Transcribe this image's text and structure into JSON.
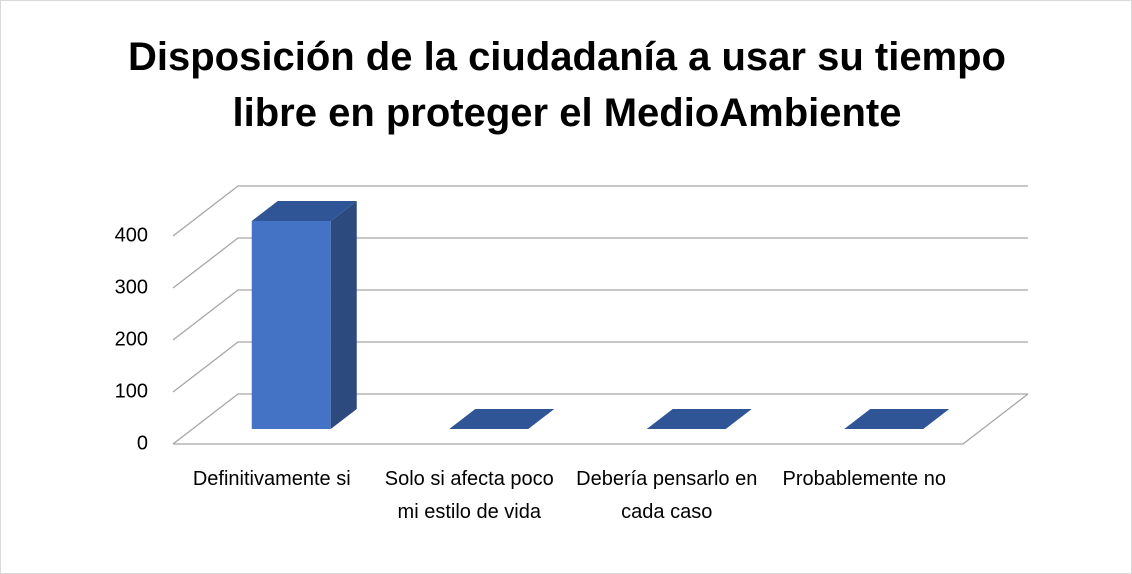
{
  "chart_data": {
    "type": "bar3d",
    "title": "Disposición de la ciudadanía a usar su tiempo libre en proteger el MedioAmbiente",
    "categories": [
      "Definitivamente si",
      "Solo si afecta poco mi estilo de vida",
      "Debería pensarlo en cada caso",
      "Probablemente no"
    ],
    "values": [
      400,
      0,
      0,
      0
    ],
    "color": "#4472c4",
    "ylim": [
      0,
      400
    ],
    "yticks": [
      0,
      100,
      200,
      300,
      400
    ],
    "grid": true
  }
}
